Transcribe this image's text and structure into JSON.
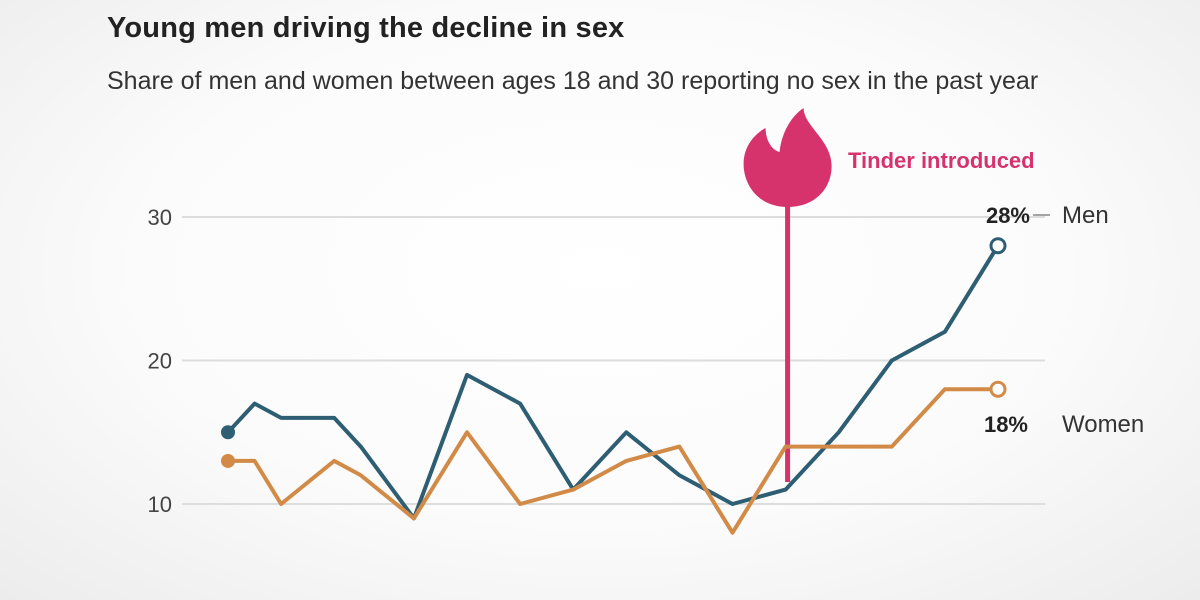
{
  "title": "Young men driving the decline in sex",
  "subtitle": "Share of men and women between ages 18 and 30 reporting no sex in the past year",
  "colors": {
    "men": "#2e5e73",
    "women": "#d28a47",
    "gridline": "#dddddd",
    "tinder": "#d6336c"
  },
  "chart_data": {
    "type": "line",
    "title": "Young men driving the decline in sex",
    "subtitle": "Share of men and women between ages 18 and 30 reporting no sex in the past year",
    "xlabel": "",
    "ylabel": "",
    "ylim": [
      8,
      31
    ],
    "yticks": [
      10,
      20,
      30
    ],
    "grid": true,
    "x": [
      0,
      1,
      2,
      3,
      4,
      5,
      6,
      7,
      8,
      9,
      10,
      11,
      12,
      13,
      14,
      15,
      16,
      17,
      18,
      19,
      20,
      21
    ],
    "series": [
      {
        "name": "Men",
        "values": [
          15,
          17,
          16,
          16,
          14,
          9,
          19,
          17,
          11,
          15,
          12,
          10,
          11,
          15,
          20,
          22,
          28
        ],
        "x": [
          0,
          0.5,
          1,
          2,
          2.5,
          3.5,
          4.5,
          5.5,
          6.5,
          7.5,
          8.5,
          9.5,
          10.5,
          11.5,
          12.5,
          13.5,
          14.5
        ],
        "end_label": "28%",
        "color": "#2e5e73"
      },
      {
        "name": "Women",
        "values": [
          13,
          13,
          10,
          13,
          12,
          9,
          15,
          10,
          11,
          13,
          14,
          8,
          14,
          14,
          14,
          18,
          18
        ],
        "x": [
          0,
          0.5,
          1,
          2,
          2.5,
          3.5,
          4.5,
          5.5,
          6.5,
          7.5,
          8.5,
          9.5,
          10.5,
          11.5,
          12.5,
          13.5,
          14.5
        ],
        "end_label": "18%",
        "color": "#d28a47"
      }
    ],
    "annotations": [
      {
        "text": "Tinder introduced",
        "x": 10.5,
        "icon": "tinder-flame-icon"
      }
    ]
  }
}
